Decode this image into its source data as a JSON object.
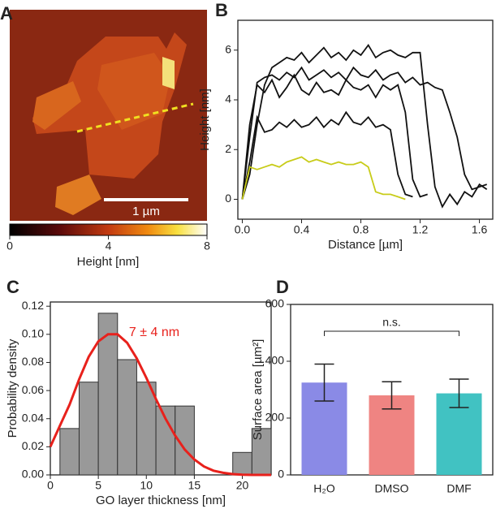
{
  "chart_data": [
    {
      "type": "image",
      "panel_label": "A",
      "clim": [
        0,
        8
      ],
      "cticks": [
        0,
        4,
        8
      ],
      "clabel": "Height [nm]",
      "scalebar_label": "1 µm"
    },
    {
      "type": "line",
      "panel_label": "B",
      "xlabel": "Distance [µm]",
      "ylabel": "Height [nm]",
      "x": [
        0,
        0.05,
        0.1,
        0.15,
        0.2,
        0.25,
        0.3,
        0.35,
        0.4,
        0.45,
        0.5,
        0.55,
        0.6,
        0.65,
        0.7,
        0.75,
        0.8,
        0.85,
        0.9,
        0.95,
        1,
        1.05,
        1.1,
        1.15,
        1.2,
        1.25,
        1.3,
        1.35,
        1.4,
        1.45,
        1.5,
        1.55,
        1.6,
        1.65
      ],
      "series": [
        {
          "color": "#111111",
          "values": [
            0,
            1.5,
            3.3,
            2.7,
            2.8,
            3.1,
            2.9,
            3.2,
            2.9,
            3.0,
            3.3,
            2.9,
            3.2,
            3.0,
            3.5,
            3.1,
            3.0,
            3.3,
            2.9,
            3.0,
            2.8,
            1.0,
            0.2,
            0.1,
            null,
            null,
            null,
            null,
            null,
            null,
            null,
            null,
            null,
            null
          ]
        },
        {
          "color": "#111111",
          "values": [
            0,
            3.0,
            4.6,
            4.3,
            4.8,
            4.1,
            4.5,
            5.0,
            4.4,
            4.2,
            4.7,
            4.3,
            4.4,
            4.2,
            4.8,
            4.5,
            4.4,
            4.6,
            4.1,
            4.6,
            4.4,
            4.6,
            3.5,
            0.8,
            0.1,
            0.2,
            null,
            null,
            null,
            null,
            null,
            null,
            null,
            null
          ]
        },
        {
          "color": "#111111",
          "values": [
            0,
            2.5,
            4.7,
            4.9,
            5.0,
            4.8,
            5.1,
            4.9,
            5.3,
            4.8,
            5.0,
            5.2,
            4.9,
            5.1,
            4.8,
            5.3,
            5.0,
            4.9,
            5.2,
            4.8,
            5.0,
            5.1,
            4.7,
            4.9,
            4.6,
            4.7,
            4.5,
            4.4,
            3.5,
            2.5,
            1.0,
            0.4,
            0.5,
            0.6
          ]
        },
        {
          "color": "#111111",
          "values": [
            0,
            1.0,
            3.0,
            4.6,
            5.3,
            5.5,
            5.7,
            5.6,
            5.9,
            5.5,
            5.8,
            6.1,
            5.7,
            5.9,
            5.6,
            6.0,
            5.8,
            6.2,
            5.7,
            5.9,
            6.0,
            5.8,
            5.7,
            5.9,
            5.9,
            3.0,
            0.5,
            -0.3,
            0.2,
            -0.2,
            0.3,
            0.1,
            0.6,
            0.4
          ]
        },
        {
          "color": "#c8cc1a",
          "values": [
            0,
            1.3,
            1.2,
            1.3,
            1.4,
            1.3,
            1.5,
            1.6,
            1.7,
            1.5,
            1.6,
            1.5,
            1.4,
            1.5,
            1.4,
            1.4,
            1.5,
            1.3,
            0.3,
            0.2,
            0.2,
            0.1,
            0.0,
            null,
            null,
            null,
            null,
            null,
            null,
            null,
            null,
            null,
            null,
            null
          ]
        }
      ],
      "xlim": [
        -0.03,
        1.69
      ],
      "ylim": [
        -0.8,
        7.2
      ],
      "xticks": [
        {
          "value": 0,
          "label": "0.0"
        },
        0.4,
        0.8,
        1.2,
        1.6
      ],
      "yticks": [
        0,
        2,
        4,
        6
      ]
    },
    {
      "type": "histogram",
      "panel_label": "C",
      "xlabel": "GO layer thickness [nm]",
      "ylabel": "Probability density",
      "bins": [
        1,
        3,
        5,
        7,
        9,
        11,
        13,
        15,
        17,
        19,
        21,
        23
      ],
      "counts": [
        0.033,
        0.066,
        0.115,
        0.082,
        0.066,
        0.049,
        0.049,
        0,
        0,
        0.016,
        0.033
      ],
      "color": "#999999",
      "fit": {
        "color": "#e8211c",
        "x": [
          0,
          1,
          2,
          3,
          4,
          5,
          6,
          7,
          8,
          9,
          10,
          11,
          12,
          13,
          14,
          15,
          16,
          17,
          18,
          19,
          20,
          21,
          22,
          23
        ],
        "values": [
          0.02,
          0.035,
          0.05,
          0.068,
          0.084,
          0.095,
          0.1,
          0.1,
          0.094,
          0.083,
          0.069,
          0.054,
          0.04,
          0.028,
          0.018,
          0.011,
          0.006,
          0.003,
          0.0015,
          0.0006,
          0.0002,
          0,
          0,
          0
        ]
      },
      "annotation": "7 ± 4 nm",
      "xlim": [
        0,
        23
      ],
      "ylim": [
        0,
        0.123
      ],
      "xticks": [
        0,
        5,
        10,
        15,
        20
      ],
      "yticks": [
        {
          "value": 0,
          "label": "0.00"
        },
        0.02,
        0.04,
        0.06,
        0.08,
        {
          "value": 0.1,
          "label": "0.10"
        },
        0.12
      ]
    },
    {
      "type": "bar",
      "panel_label": "D",
      "ylabel": "Surface area [µm²]",
      "categories": [
        "H₂O",
        "DMSO",
        "DMF"
      ],
      "values": [
        325,
        280,
        287
      ],
      "errors": [
        65,
        48,
        50
      ],
      "colors": [
        "#8a8ae6",
        "#ef8482",
        "#41c2c2"
      ],
      "annotation": "n.s.",
      "ylim": [
        0,
        600
      ],
      "yticks": [
        0,
        200,
        400,
        600
      ]
    }
  ]
}
